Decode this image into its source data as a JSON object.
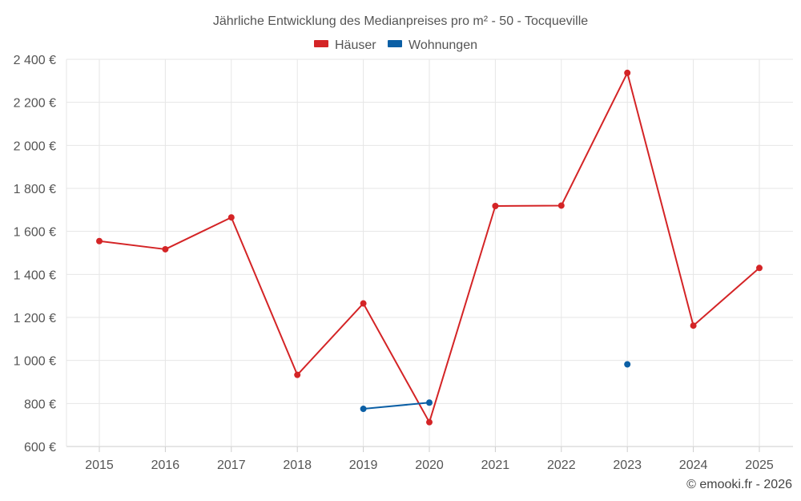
{
  "chart_data": {
    "type": "line",
    "title": "Jährliche Entwicklung des Medianpreises pro m² - 50 - Tocqueville",
    "categories": [
      "2015",
      "2016",
      "2017",
      "2018",
      "2019",
      "2020",
      "2021",
      "2022",
      "2023",
      "2024",
      "2025"
    ],
    "ylim": [
      600,
      2400
    ],
    "yticks": [
      600,
      800,
      1000,
      1200,
      1400,
      1600,
      1800,
      2000,
      2200,
      2400
    ],
    "yunit": "€",
    "grid": true,
    "legend_position": "top-center",
    "series": [
      {
        "name": "Häuser",
        "color": "#d42426",
        "values": [
          1555,
          1517,
          1665,
          933,
          1265,
          713,
          1718,
          1720,
          2337,
          1162,
          1430
        ]
      },
      {
        "name": "Wohnungen",
        "color": "#0b5fa5",
        "values": [
          null,
          null,
          null,
          null,
          775,
          804,
          null,
          null,
          982,
          null,
          null
        ]
      }
    ]
  },
  "credit": "© emooki.fr - 2026"
}
